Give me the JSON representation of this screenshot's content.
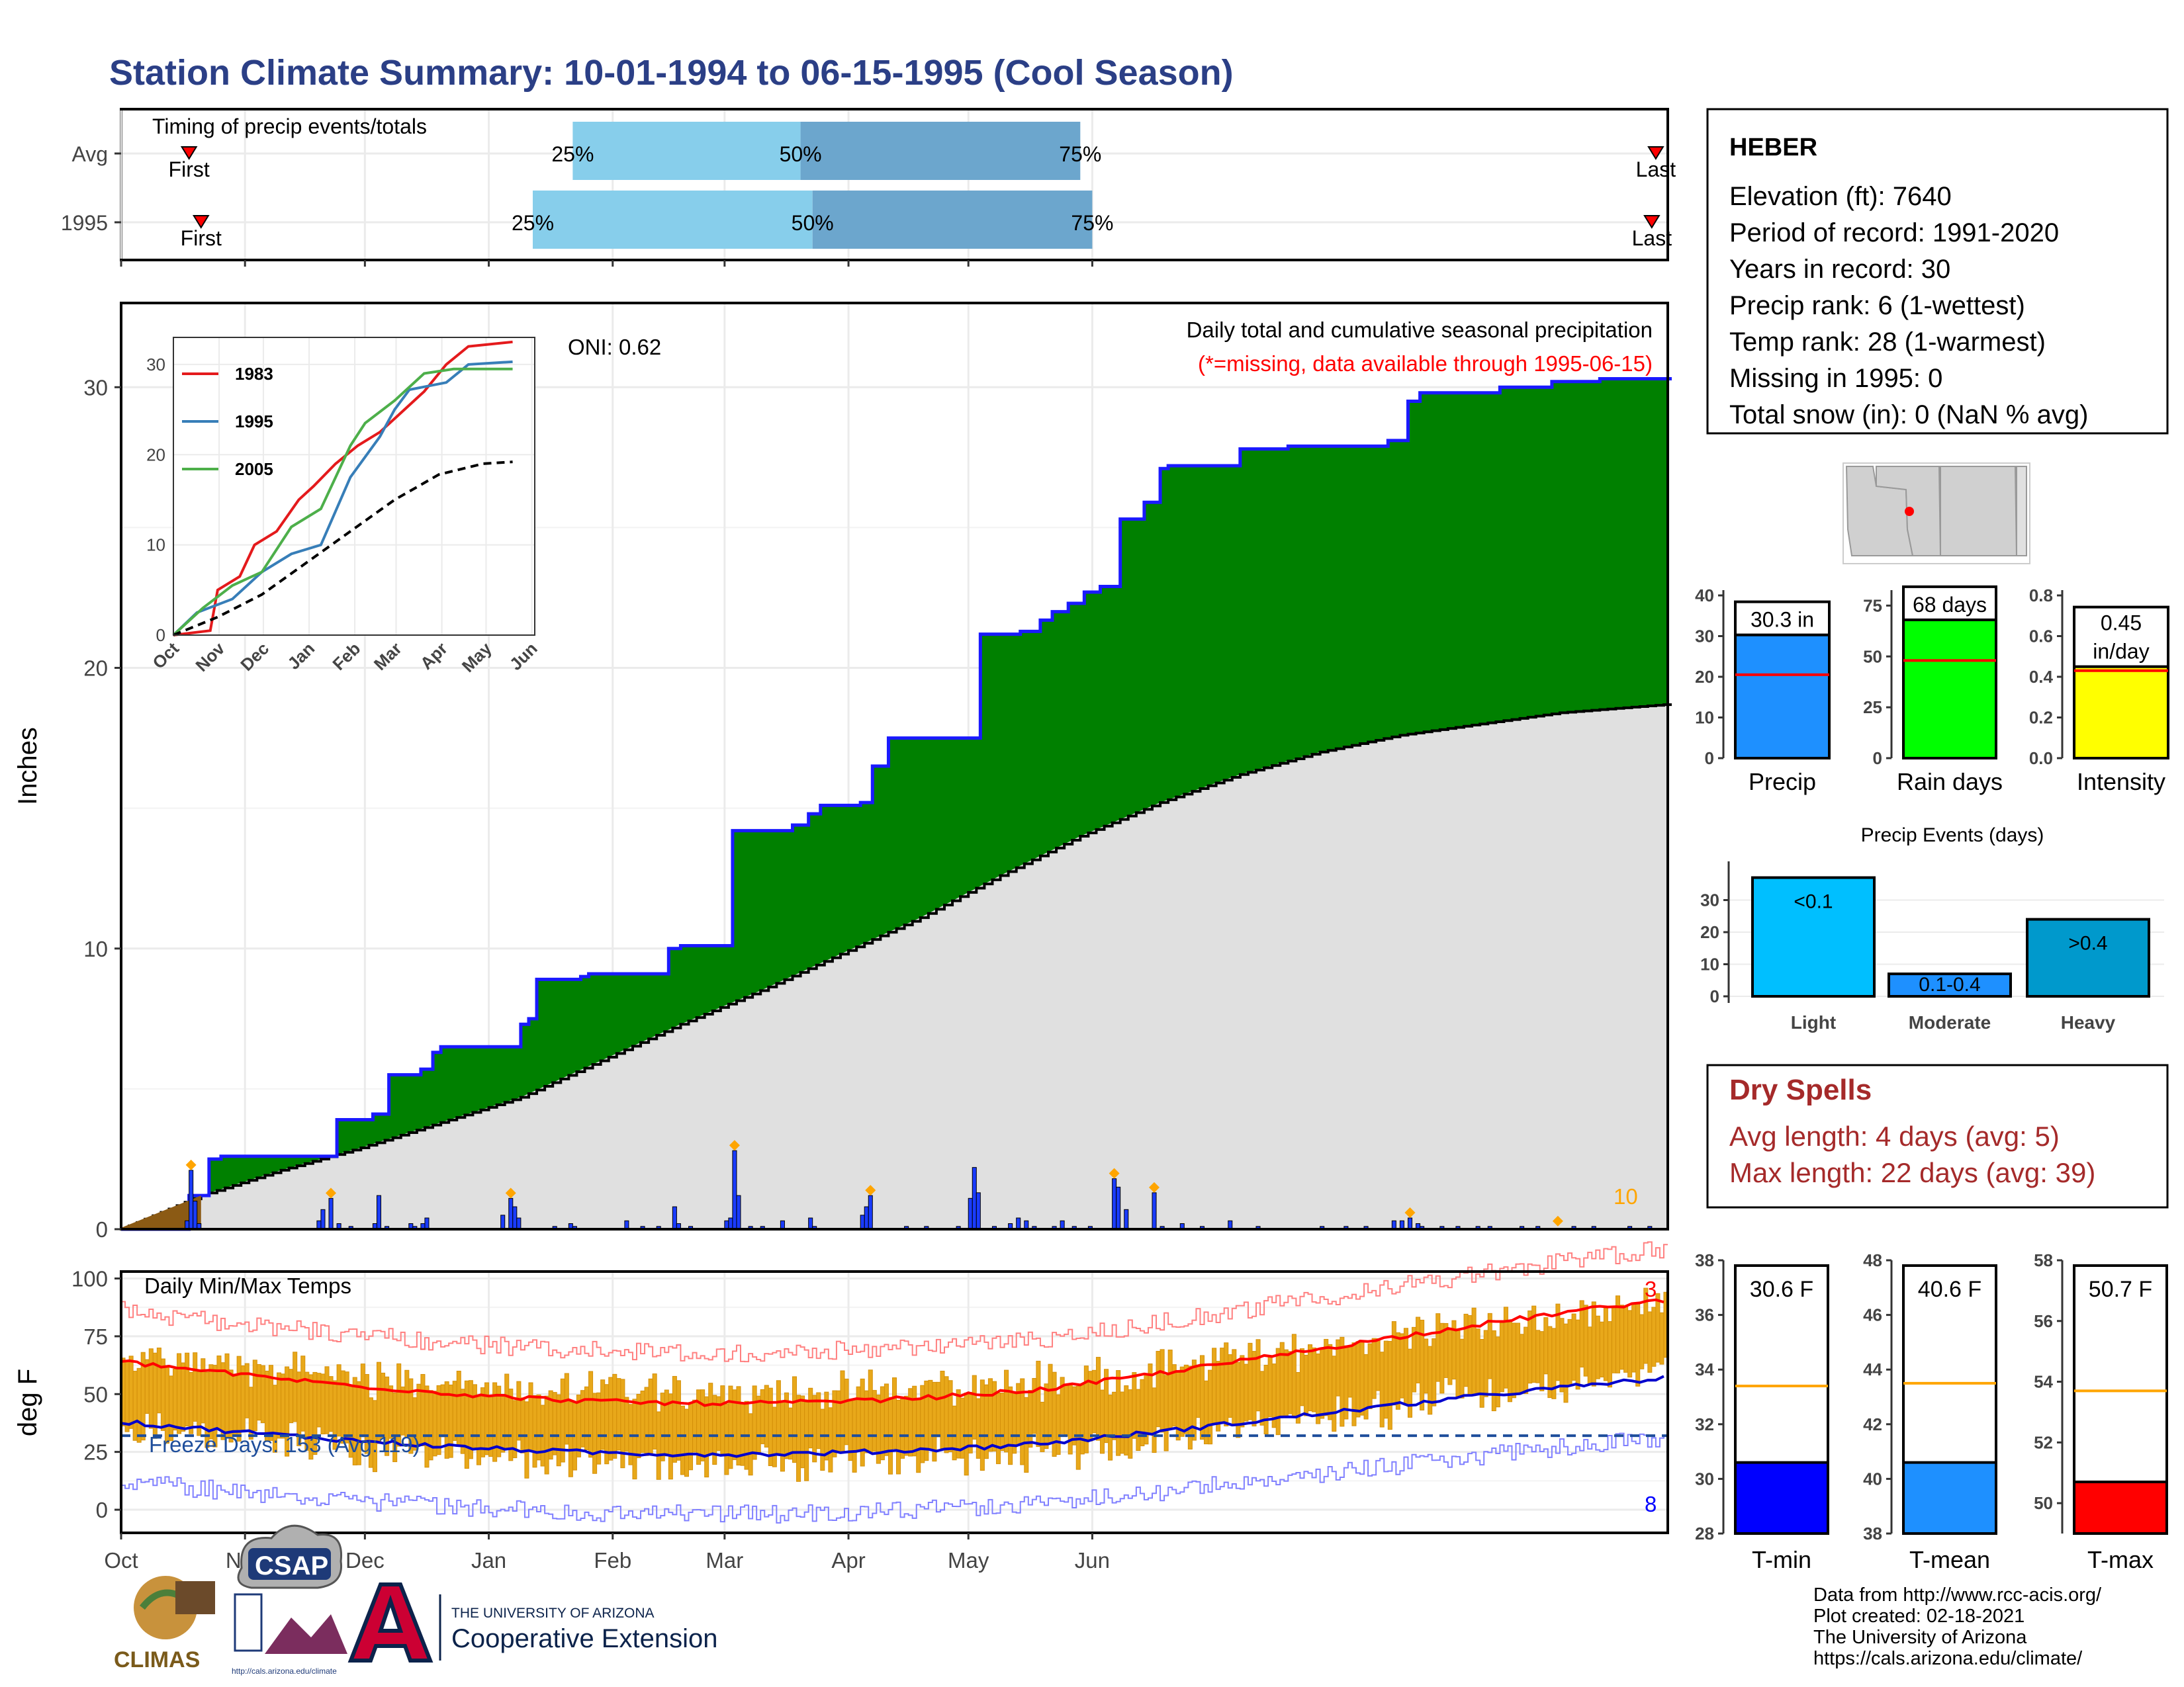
{
  "title": "Station Climate Summary: 10-01-1994 to 06-15-1995 (Cool Season)",
  "colors": {
    "title": "#2B3F86",
    "green": "#008000",
    "blue_line": "#1a1aff",
    "daily_bar": "#1a3cff",
    "gray_area": "#E0E0E0",
    "brown": "#8B5A14",
    "light_blue": "#87CEEB",
    "steel_blue": "#6CA6CD",
    "orange": "#FFA500",
    "red": "#FF0000",
    "dry_spell": "#A52A2A"
  },
  "months": [
    "Oct",
    "Nov",
    "Dec",
    "Jan",
    "Feb",
    "Mar",
    "Apr",
    "May",
    "Jun"
  ],
  "timing": {
    "label": "Timing of precip events/totals",
    "rows": [
      {
        "name": "Avg",
        "first_day": 17,
        "q25_day": 113,
        "q50_day": 170,
        "q75_day": 240,
        "last_day": 384
      },
      {
        "name": "1995",
        "first_day": 20,
        "q25_day": 103,
        "q50_day": 173,
        "q75_day": 243,
        "last_day": 383
      }
    ],
    "first_label": "First",
    "last_label": "Last",
    "q_labels": [
      "25%",
      "50%",
      "75%"
    ]
  },
  "main": {
    "ylabel": "Inches",
    "yticks": [
      0,
      10,
      20,
      30
    ],
    "oni": "ONI: 0.62",
    "subtitle": "Daily total and cumulative seasonal precipitation",
    "missing_note": "(*=missing, data available through 1995-06-15)",
    "count_label": "10"
  },
  "chart_data": [
    {
      "type": "area",
      "name": "Cumulative seasonal precipitation 1995 vs normal",
      "ylabel": "Inches",
      "ylim": [
        0,
        33
      ],
      "series": [
        {
          "name": "cumulative_1995",
          "points": [
            [
              0,
              0
            ],
            [
              16,
              0
            ],
            [
              17,
              1.2
            ],
            [
              22,
              2.5
            ],
            [
              25,
              2.6
            ],
            [
              49,
              2.6
            ],
            [
              54,
              3.9
            ],
            [
              63,
              4.1
            ],
            [
              67,
              5.5
            ],
            [
              75,
              5.7
            ],
            [
              78,
              6.3
            ],
            [
              80,
              6.5
            ],
            [
              97,
              6.5
            ],
            [
              100,
              7.3
            ],
            [
              102,
              7.5
            ],
            [
              104,
              8.9
            ],
            [
              115,
              9.0
            ],
            [
              117,
              9.1
            ],
            [
              135,
              9.1
            ],
            [
              137,
              10.0
            ],
            [
              140,
              10.1
            ],
            [
              150,
              10.1
            ],
            [
              153,
              14.2
            ],
            [
              165,
              14.2
            ],
            [
              168,
              14.4
            ],
            [
              172,
              14.8
            ],
            [
              175,
              15.1
            ],
            [
              185,
              15.2
            ],
            [
              188,
              16.5
            ],
            [
              192,
              17.5
            ],
            [
              211,
              17.5
            ],
            [
              215,
              21.2
            ],
            [
              225,
              21.3
            ],
            [
              230,
              21.7
            ],
            [
              233,
              22.0
            ],
            [
              237,
              22.3
            ],
            [
              241,
              22.7
            ],
            [
              245,
              22.9
            ],
            [
              250,
              25.3
            ],
            [
              256,
              25.9
            ],
            [
              260,
              27.1
            ],
            [
              262,
              27.2
            ],
            [
              270,
              27.2
            ],
            [
              280,
              27.8
            ],
            [
              285,
              27.8
            ],
            [
              292,
              27.9
            ],
            [
              312,
              27.9
            ],
            [
              317,
              28.1
            ],
            [
              322,
              29.5
            ],
            [
              325,
              29.8
            ],
            [
              345,
              30.0
            ],
            [
              358,
              30.2
            ],
            [
              370,
              30.3
            ],
            [
              387,
              30.3
            ]
          ]
        },
        {
          "name": "normal",
          "points": [
            [
              0,
              0
            ],
            [
              20,
              1.2
            ],
            [
              40,
              2.1
            ],
            [
              60,
              2.9
            ],
            [
              80,
              3.8
            ],
            [
              100,
              4.7
            ],
            [
              120,
              6.0
            ],
            [
              140,
              7.3
            ],
            [
              160,
              8.5
            ],
            [
              180,
              9.8
            ],
            [
              200,
              11.1
            ],
            [
              220,
              12.6
            ],
            [
              240,
              14.0
            ],
            [
              260,
              15.2
            ],
            [
              280,
              16.2
            ],
            [
              300,
              17.0
            ],
            [
              320,
              17.6
            ],
            [
              340,
              18.0
            ],
            [
              360,
              18.4
            ],
            [
              387,
              18.7
            ]
          ]
        }
      ],
      "daily": [
        [
          16,
          0.3
        ],
        [
          17,
          2.1
        ],
        [
          18,
          1.0
        ],
        [
          19,
          0.2
        ],
        [
          49,
          0.3
        ],
        [
          50,
          0.7
        ],
        [
          52,
          1.1
        ],
        [
          54,
          0.2
        ],
        [
          57,
          0.1
        ],
        [
          63,
          0.2
        ],
        [
          64,
          1.2
        ],
        [
          66,
          0.1
        ],
        [
          72,
          0.2
        ],
        [
          73,
          0.1
        ],
        [
          75,
          0.2
        ],
        [
          76,
          0.4
        ],
        [
          95,
          0.5
        ],
        [
          97,
          1.1
        ],
        [
          98,
          0.8
        ],
        [
          99,
          0.4
        ],
        [
          108,
          0.1
        ],
        [
          112,
          0.2
        ],
        [
          113,
          0.1
        ],
        [
          126,
          0.3
        ],
        [
          130,
          0.1
        ],
        [
          134,
          0.1
        ],
        [
          138,
          0.8
        ],
        [
          139,
          0.2
        ],
        [
          142,
          0.1
        ],
        [
          151,
          0.3
        ],
        [
          152,
          0.4
        ],
        [
          153,
          2.8
        ],
        [
          154,
          1.2
        ],
        [
          157,
          0.1
        ],
        [
          160,
          0.1
        ],
        [
          165,
          0.3
        ],
        [
          172,
          0.4
        ],
        [
          173,
          0.1
        ],
        [
          185,
          0.5
        ],
        [
          186,
          0.8
        ],
        [
          187,
          1.2
        ],
        [
          196,
          0.1
        ],
        [
          201,
          0.1
        ],
        [
          209,
          0.1
        ],
        [
          212,
          1.1
        ],
        [
          213,
          2.2
        ],
        [
          214,
          1.3
        ],
        [
          218,
          0.1
        ],
        [
          222,
          0.2
        ],
        [
          224,
          0.4
        ],
        [
          226,
          0.3
        ],
        [
          228,
          0.1
        ],
        [
          233,
          0.1
        ],
        [
          235,
          0.3
        ],
        [
          238,
          0.1
        ],
        [
          242,
          0.1
        ],
        [
          248,
          1.8
        ],
        [
          249,
          1.5
        ],
        [
          251,
          0.7
        ],
        [
          258,
          1.3
        ],
        [
          260,
          0.1
        ],
        [
          265,
          0.2
        ],
        [
          270,
          0.1
        ],
        [
          277,
          0.3
        ],
        [
          284,
          0.1
        ],
        [
          300,
          0.1
        ],
        [
          306,
          0.1
        ],
        [
          311,
          0.1
        ],
        [
          318,
          0.3
        ],
        [
          320,
          0.3
        ],
        [
          322,
          0.4
        ],
        [
          324,
          0.2
        ],
        [
          325,
          0.1
        ],
        [
          330,
          0.1
        ],
        [
          334,
          0.1
        ],
        [
          339,
          0.1
        ],
        [
          342,
          0.1
        ],
        [
          350,
          0.1
        ],
        [
          354,
          0.1
        ],
        [
          363,
          0.1
        ],
        [
          368,
          0.1
        ],
        [
          377,
          0.1
        ],
        [
          382,
          0.1
        ]
      ],
      "markers": [
        17,
        52,
        97,
        153,
        187,
        248,
        258,
        322,
        359
      ]
    },
    {
      "type": "line",
      "name": "inset cumulative comparison",
      "x_ticks": [
        "Oct",
        "Nov",
        "Dec",
        "Jan",
        "Feb",
        "Mar",
        "Apr",
        "May",
        "Jun"
      ],
      "yticks": [
        0,
        10,
        20,
        30
      ],
      "series": [
        {
          "name": "1983",
          "color": "#E41A1C",
          "points": [
            [
              0,
              0
            ],
            [
              25,
              0.5
            ],
            [
              30,
              5
            ],
            [
              45,
              6.5
            ],
            [
              55,
              10
            ],
            [
              70,
              11.5
            ],
            [
              85,
              15
            ],
            [
              95,
              16.5
            ],
            [
              110,
              19
            ],
            [
              125,
              21
            ],
            [
              140,
              22.5
            ],
            [
              150,
              24
            ],
            [
              170,
              27
            ],
            [
              185,
              30
            ],
            [
              200,
              32
            ],
            [
              230,
              32.5
            ]
          ]
        },
        {
          "name": "1995",
          "color": "#377EB8",
          "points": [
            [
              0,
              0
            ],
            [
              16,
              2.5
            ],
            [
              40,
              4
            ],
            [
              60,
              7
            ],
            [
              80,
              9
            ],
            [
              100,
              10
            ],
            [
              120,
              17.5
            ],
            [
              140,
              22
            ],
            [
              150,
              25
            ],
            [
              160,
              27.2
            ],
            [
              185,
              28
            ],
            [
              200,
              30
            ],
            [
              230,
              30.3
            ]
          ]
        },
        {
          "name": "2005",
          "color": "#4DAF4A",
          "points": [
            [
              0,
              0
            ],
            [
              20,
              3
            ],
            [
              40,
              5.5
            ],
            [
              60,
              7
            ],
            [
              80,
              12
            ],
            [
              100,
              14
            ],
            [
              120,
              21
            ],
            [
              130,
              23.5
            ],
            [
              150,
              26
            ],
            [
              170,
              29
            ],
            [
              190,
              29.5
            ],
            [
              230,
              29.5
            ]
          ]
        },
        {
          "name": "normal",
          "color": "#000000",
          "points": [
            [
              0,
              0
            ],
            [
              30,
              2
            ],
            [
              60,
              4.5
            ],
            [
              90,
              8
            ],
            [
              120,
              11.5
            ],
            [
              150,
              15
            ],
            [
              180,
              17.8
            ],
            [
              210,
              19
            ],
            [
              230,
              19.2
            ]
          ]
        }
      ]
    },
    {
      "type": "bar",
      "name": "temperature daily min/max",
      "ylabel": "deg F",
      "ylim": [
        -10,
        100
      ],
      "yticks": [
        0,
        25,
        50,
        75,
        100
      ],
      "label": "Daily Min/Max Temps",
      "freeze_days": "Freeze Days: 153 (Avg:119)",
      "freeze_line": 32,
      "corner_top": "3",
      "corner_bottom": "8"
    },
    {
      "type": "bar",
      "name": "Precip summary bars",
      "panels": [
        {
          "label": "Precip",
          "value": 30.3,
          "avg": 20.5,
          "text": "30.3 in",
          "ylim": [
            0,
            40
          ],
          "yticks": [
            0,
            10,
            20,
            30,
            40
          ],
          "color": "#1E90FF"
        },
        {
          "label": "Rain days",
          "value": 68,
          "avg": 48,
          "text": "68 days",
          "ylim": [
            0,
            80
          ],
          "yticks": [
            0,
            25,
            50,
            75
          ],
          "color": "#00FF00"
        },
        {
          "label": "Intensity",
          "value": 0.45,
          "avg": 0.43,
          "text": "0.45 in/day",
          "ylim": [
            0,
            0.8
          ],
          "yticks": [
            0.0,
            0.2,
            0.4,
            0.6,
            0.8
          ],
          "color": "#FFFF00"
        }
      ]
    },
    {
      "type": "bar",
      "title": "Precip Events (days)",
      "categories": [
        "Light",
        "Moderate",
        "Heavy"
      ],
      "values": [
        37,
        7,
        24
      ],
      "bar_labels": [
        "<0.1",
        "0.1-0.4",
        ">0.4"
      ],
      "ylim": [
        0,
        40
      ],
      "yticks": [
        0,
        10,
        20,
        30
      ]
    },
    {
      "type": "bar",
      "name": "Temperature summary bars",
      "panels": [
        {
          "label": "T-min",
          "value": 30.6,
          "avg": 33.4,
          "text": "30.6 F",
          "ylim": [
            28,
            38
          ],
          "yticks": [
            28,
            30,
            32,
            34,
            36,
            38
          ],
          "color": "#0000FF"
        },
        {
          "label": "T-mean",
          "value": 40.6,
          "avg": 43.5,
          "text": "40.6 F",
          "ylim": [
            38,
            48
          ],
          "yticks": [
            38,
            40,
            42,
            44,
            46,
            48
          ],
          "color": "#1E90FF"
        },
        {
          "label": "T-max",
          "value": 50.7,
          "avg": 53.7,
          "text": "50.7 F",
          "ylim": [
            49,
            58
          ],
          "yticks": [
            50,
            52,
            54,
            56,
            58
          ],
          "color": "#FF0000"
        }
      ]
    }
  ],
  "station": {
    "name": "HEBER",
    "lines": [
      "Elevation (ft): 7640",
      "Period of record: 1991-2020",
      "Years in record: 30",
      "Precip rank: 6 (1-wettest)",
      "Temp rank: 28 (1-warmest)",
      "Missing in 1995: 0",
      "Total snow (in): 0 (NaN % avg)"
    ]
  },
  "dry_spells": {
    "title": "Dry Spells",
    "avg": "Avg length: 4 days (avg: 5)",
    "max": "Max length: 22 days (avg: 39)"
  },
  "credits": [
    "Data from http://www.rcc-acis.org/",
    "Plot created: 02-18-2021",
    "The University of Arizona",
    "https://cals.arizona.edu/climate/"
  ],
  "logos": {
    "climas": "CLIMAS",
    "csap": "CSAP",
    "ua_top": "THE UNIVERSITY OF ARIZONA",
    "ua_bottom": "Cooperative Extension",
    "csap_url": "http://cals.arizona.edu/climate"
  }
}
